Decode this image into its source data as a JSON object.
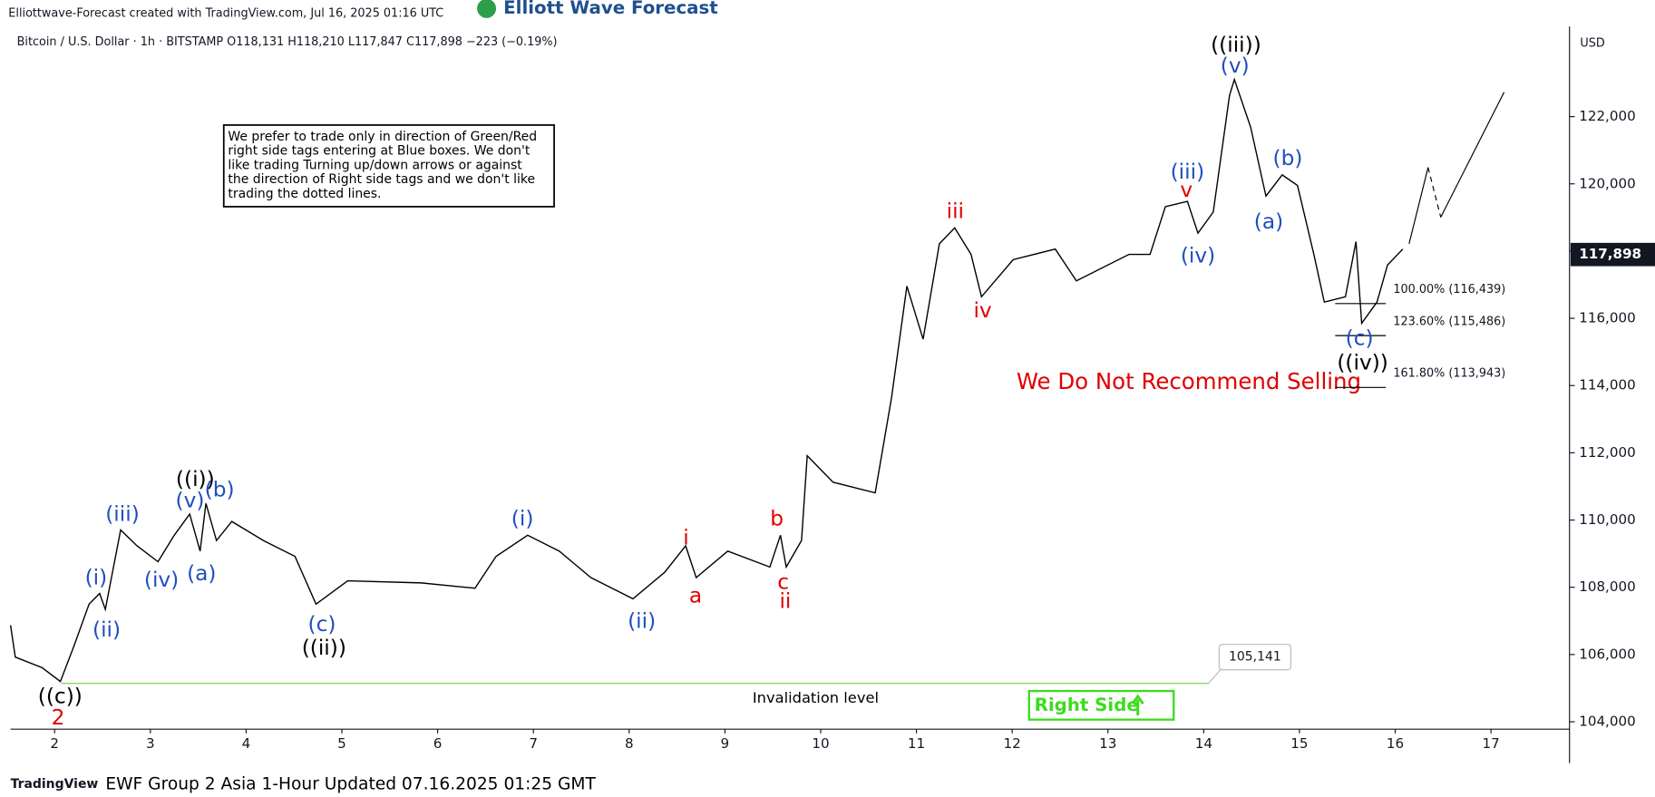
{
  "header": {
    "credit": "Elliottwave-Forecast created with TradingView.com, Jul 16, 2025 01:16 UTC",
    "logo": "Elliott Wave Forecast",
    "symbol": "Bitcoin / U.S. Dollar · 1h · BITSTAMP  O118,131 H118,210 L117,847 C117,898 −223 (−0.19%)"
  },
  "chart_data": {
    "type": "line",
    "currency": "USD",
    "color": "#000000",
    "x": [
      1.54,
      1.59,
      1.87,
      2.06,
      2.2,
      2.36,
      2.47,
      2.53,
      2.69,
      2.86,
      3.08,
      3.25,
      3.41,
      3.52,
      3.58,
      3.69,
      3.85,
      4.18,
      4.51,
      4.73,
      5.06,
      5.83,
      6.39,
      6.61,
      6.94,
      7.27,
      7.6,
      8.04,
      8.37,
      8.59,
      8.7,
      9.03,
      9.47,
      9.58,
      9.64,
      9.8,
      9.86,
      10.13,
      10.57,
      10.74,
      10.9,
      11.07,
      11.24,
      11.4,
      11.57,
      11.68,
      12.01,
      12.45,
      12.67,
      13.22,
      13.44,
      13.6,
      13.83,
      13.94,
      14.1,
      14.27,
      14.32,
      14.49,
      14.65,
      14.82,
      14.98,
      15.15,
      15.26,
      15.48,
      15.59,
      15.65,
      15.81,
      15.92,
      16.08
    ],
    "values": [
      106869,
      105923,
      105608,
      105198,
      106238,
      107500,
      107815,
      107342,
      109706,
      109233,
      108760,
      109549,
      110179,
      109076,
      110494,
      109391,
      109958,
      109391,
      108918,
      107500,
      108193,
      108130,
      107972,
      108918,
      109549,
      109076,
      108287,
      107657,
      108445,
      109233,
      108287,
      109076,
      108603,
      109549,
      108603,
      109391,
      111913,
      111125,
      110810,
      113647,
      116957,
      115381,
      118218,
      118691,
      117903,
      116642,
      117745,
      118060,
      117115,
      117903,
      117903,
      119321,
      119478,
      118533,
      119163,
      122631,
      123104,
      121686,
      119636,
      120267,
      119952,
      117903,
      116484,
      116642,
      118281,
      115854,
      116484,
      117587,
      118060
    ],
    "xlim": [
      1.54,
      17.82
    ],
    "xticks": [
      2,
      3,
      4,
      5,
      6,
      7,
      8,
      9,
      10,
      11,
      12,
      13,
      14,
      15,
      16,
      17
    ],
    "ylim": [
      103780,
      124680
    ],
    "yticks": [
      {
        "value": 104000,
        "label": "104,000"
      },
      {
        "value": 106000,
        "label": "106,000"
      },
      {
        "value": 108000,
        "label": "108,000"
      },
      {
        "value": 110000,
        "label": "110,000"
      },
      {
        "value": 112000,
        "label": "112,000"
      },
      {
        "value": 114000,
        "label": "114,000"
      },
      {
        "value": 116000,
        "label": "116,000"
      },
      {
        "value": 118000,
        "label": "118,000"
      },
      {
        "value": 120000,
        "label": "120,000"
      },
      {
        "value": 122000,
        "label": "122,000"
      }
    ],
    "last_price": {
      "value": 117898,
      "label": "117,898"
    },
    "invalidation": {
      "value": 105141,
      "label": "105,141",
      "text": "Invalidation level"
    },
    "fib_levels": [
      {
        "value": 116439,
        "label": "100.00% (116,439)"
      },
      {
        "value": 115486,
        "label": "123.60% (115,486)"
      },
      {
        "value": 113943,
        "label": "161.80% (113,943)"
      }
    ],
    "waves": [
      {
        "text": "((c))",
        "color": "#000000"
      },
      {
        "text": "2",
        "color": "#e00000"
      },
      {
        "text": "(i)",
        "color": "#1f4fbf"
      },
      {
        "text": "(ii)",
        "color": "#1f4fbf"
      },
      {
        "text": "(iii)",
        "color": "#1f4fbf"
      },
      {
        "text": "(iv)",
        "color": "#1f4fbf"
      },
      {
        "text": "(v)",
        "color": "#1f4fbf"
      },
      {
        "text": "((i))",
        "color": "#000000"
      },
      {
        "text": "(b)",
        "color": "#1f4fbf"
      },
      {
        "text": "(a)",
        "color": "#1f4fbf"
      },
      {
        "text": "(c)",
        "color": "#1f4fbf"
      },
      {
        "text": "((ii))",
        "color": "#000000"
      },
      {
        "text": "(i)",
        "color": "#1f4fbf"
      },
      {
        "text": "(ii)",
        "color": "#1f4fbf"
      },
      {
        "text": "i",
        "color": "#e00000"
      },
      {
        "text": "a",
        "color": "#e00000"
      },
      {
        "text": "b",
        "color": "#e00000"
      },
      {
        "text": "c",
        "color": "#e00000"
      },
      {
        "text": "ii",
        "color": "#e00000"
      },
      {
        "text": "iii",
        "color": "#e00000"
      },
      {
        "text": "iv",
        "color": "#e00000"
      },
      {
        "text": "(iii)",
        "color": "#1f4fbf"
      },
      {
        "text": "v",
        "color": "#e00000"
      },
      {
        "text": "(iv)",
        "color": "#1f4fbf"
      },
      {
        "text": "((iii))",
        "color": "#000000"
      },
      {
        "text": "(v)",
        "color": "#1f4fbf"
      },
      {
        "text": "(b)",
        "color": "#1f4fbf"
      },
      {
        "text": "(a)",
        "color": "#1f4fbf"
      },
      {
        "text": "(c)",
        "color": "#1f4fbf"
      },
      {
        "text": "((iv))",
        "color": "#000000"
      }
    ],
    "note": [
      "We prefer to trade only in direction of Green/Red",
      "right side tags entering at Blue boxes. We don't",
      "like trading Turning up/down arrows or against",
      "the direction of Right side tags and we don't like",
      "trading the dotted lines."
    ],
    "warning": "We Do Not Recommend Selling",
    "right_side": "Right Side"
  },
  "footer": {
    "brand": "TradingView",
    "caption": "EWF Group 2 Asia 1-Hour Updated 07.16.2025 01:25 GMT"
  }
}
